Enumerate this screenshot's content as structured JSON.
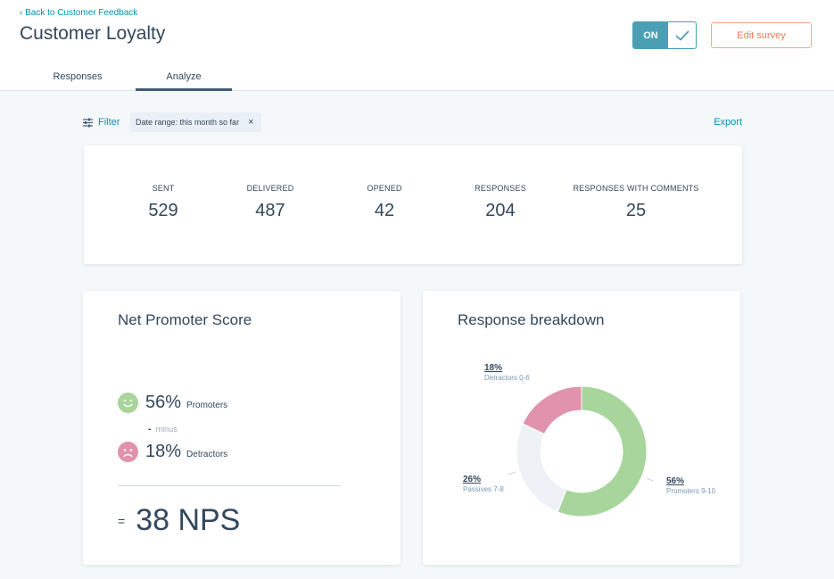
{
  "header": {
    "back_link": "Back to Customer Feedback",
    "title": "Customer Loyalty",
    "toggle_label": "ON",
    "edit_button": "Edit survey"
  },
  "tabs": [
    {
      "label": "Responses",
      "active": false
    },
    {
      "label": "Analyze",
      "active": true
    }
  ],
  "filters": {
    "filter_label": "Filter",
    "date_chip": "Date range: this month so far",
    "chip_close": "×",
    "export_label": "Export"
  },
  "stats": [
    {
      "label": "SENT",
      "value": "529"
    },
    {
      "label": "DELIVERED",
      "value": "487"
    },
    {
      "label": "OPENED",
      "value": "42"
    },
    {
      "label": "RESPONSES",
      "value": "204"
    },
    {
      "label": "RESPONSES WITH COMMENTS",
      "value": "25"
    }
  ],
  "nps": {
    "title": "Net Promoter Score",
    "promoters_pct": "56%",
    "promoters_label": "Promoters",
    "minus_symbol": "-",
    "minus_label": "minus",
    "detractors_pct": "18%",
    "detractors_label": "Detractors",
    "equals_symbol": "=",
    "score": "38 NPS"
  },
  "breakdown": {
    "title": "Response breakdown",
    "slices": [
      {
        "pct": "56%",
        "name": "Promoters 9-10",
        "value": 56,
        "color": "#a7d59b"
      },
      {
        "pct": "26%",
        "name": "Passives 7-8",
        "value": 26,
        "color": "#eef2f6"
      },
      {
        "pct": "18%",
        "name": "Detractors 0-6",
        "value": 18,
        "color": "#e192ad"
      }
    ]
  },
  "colors": {
    "accent": "#0091ae",
    "toggle": "#4a9fb5",
    "edit_button": "#f07b5a",
    "promoter_face": "#a7d59b",
    "detractor_face": "#e192ad"
  },
  "icons": {
    "back": "chevron-left-icon",
    "toggle": "checkmark-icon",
    "filter": "sliders-icon",
    "promoter": "smiley-face-icon",
    "detractor": "frown-face-icon"
  }
}
